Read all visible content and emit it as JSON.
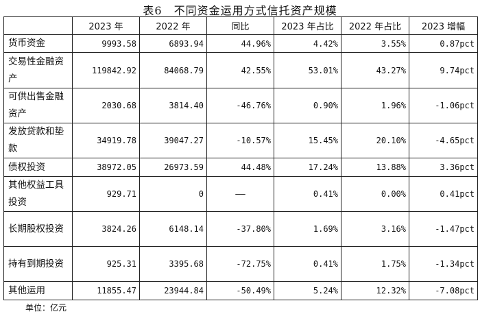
{
  "title": "表6　不同资金运用方式信托资产规模",
  "headers": [
    "",
    "2023 年",
    "2022 年",
    "同比",
    "2023 年占比",
    "2022 年占比",
    "2023 增幅"
  ],
  "rows": [
    {
      "name": "货币资金",
      "y2023": "9993.58",
      "y2022": "6893.94",
      "yoy": "44.96%",
      "share2023": "4.42%",
      "share2022": "3.55%",
      "change": "0.87pct"
    },
    {
      "name": "交易性金融资产",
      "y2023": "119842.92",
      "y2022": "84068.79",
      "yoy": "42.55%",
      "share2023": "53.01%",
      "share2022": "43.27%",
      "change": "9.74pct"
    },
    {
      "name": "可供出售金融资产",
      "y2023": "2030.68",
      "y2022": "3814.40",
      "yoy": "-46.76%",
      "share2023": "0.90%",
      "share2022": "1.96%",
      "change": "-1.06pct"
    },
    {
      "name": "发放贷款和垫款",
      "y2023": "34919.78",
      "y2022": "39047.27",
      "yoy": "-10.57%",
      "share2023": "15.45%",
      "share2022": "20.10%",
      "change": "-4.65pct"
    },
    {
      "name": "债权投资",
      "y2023": "38972.05",
      "y2022": "26973.59",
      "yoy": "44.48%",
      "share2023": "17.24%",
      "share2022": "13.88%",
      "change": "3.36pct"
    },
    {
      "name": "其他权益工具投资",
      "y2023": "929.71",
      "y2022": "0",
      "yoy": "——",
      "share2023": "0.41%",
      "share2022": "0.00%",
      "change": "0.41pct"
    },
    {
      "name": "长期股权投资",
      "y2023": "3824.26",
      "y2022": "6148.14",
      "yoy": "-37.80%",
      "share2023": "1.69%",
      "share2022": "3.16%",
      "change": "-1.47pct"
    },
    {
      "name": "持有到期投资",
      "y2023": "925.31",
      "y2022": "3395.68",
      "yoy": "-72.75%",
      "share2023": "0.41%",
      "share2022": "1.75%",
      "change": "-1.34pct"
    },
    {
      "name": "其他运用",
      "y2023": "11855.47",
      "y2022": "23944.84",
      "yoy": "-50.49%",
      "share2023": "5.24%",
      "share2022": "12.32%",
      "change": "-7.08pct"
    }
  ],
  "footnote": "单位：亿元"
}
